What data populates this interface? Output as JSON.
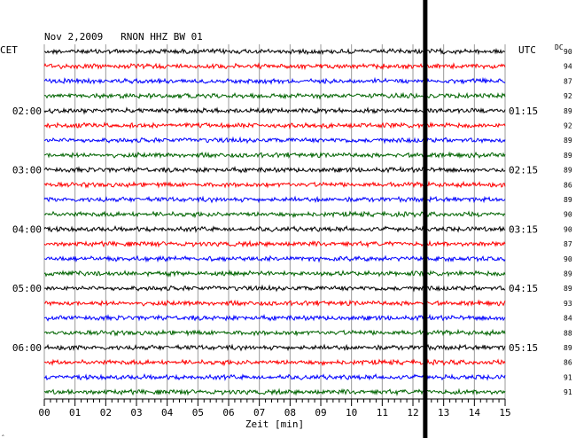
{
  "chart_data": {
    "type": "line",
    "header": "Nov 2,2009   RNON HHZ BW 01",
    "left_zone": "CET",
    "right_zone": "UTC",
    "dc_label": "DC",
    "xlabel": "Zeit [min]",
    "xlim": [
      0,
      15
    ],
    "x_ticks": [
      "00",
      "01",
      "02",
      "03",
      "04",
      "05",
      "06",
      "07",
      "08",
      "09",
      "10",
      "11",
      "12",
      "13",
      "14",
      "15"
    ],
    "trace_colors": [
      "#000000",
      "#ff0000",
      "#0000ff",
      "#006400"
    ],
    "left_time_labels": [
      {
        "row": 4,
        "label": "02:00"
      },
      {
        "row": 8,
        "label": "03:00"
      },
      {
        "row": 12,
        "label": "04:00"
      },
      {
        "row": 16,
        "label": "05:00"
      },
      {
        "row": 20,
        "label": "06:00"
      }
    ],
    "right_time_labels": [
      {
        "row": 4,
        "label": "01:15"
      },
      {
        "row": 8,
        "label": "02:15"
      },
      {
        "row": 12,
        "label": "03:15"
      },
      {
        "row": 16,
        "label": "04:15"
      },
      {
        "row": 20,
        "label": "05:15"
      }
    ],
    "dc_values": [
      "90",
      "94",
      "87",
      "92",
      "89",
      "92",
      "89",
      "89",
      "89",
      "86",
      "89",
      "90",
      "90",
      "87",
      "90",
      "89",
      "89",
      "93",
      "84",
      "88",
      "89",
      "86",
      "91",
      "91"
    ],
    "event_marker_minute": 12.4,
    "corner_mark": "‸"
  }
}
